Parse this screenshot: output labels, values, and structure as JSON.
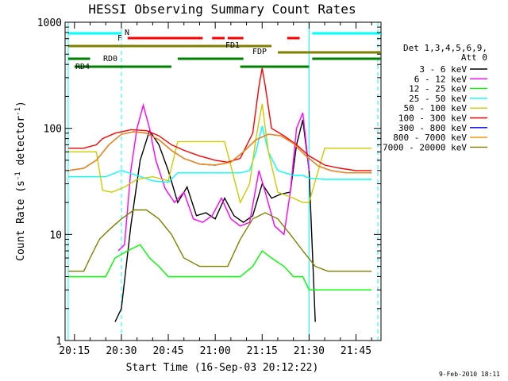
{
  "chart_data": {
    "type": "line",
    "title": "HESSI Observing Summary Count Rates",
    "xlabel": "Start Time (16-Sep-03 20:12:22)",
    "ylabel": "Count Rate (s^-1 detector^-1)",
    "ylabel_parts": {
      "base": "Count Rate (s",
      "exp1": "-1",
      "mid": " detector",
      "exp2": "-1",
      "end": ")"
    },
    "yscale": "log",
    "ylim": [
      1,
      1000
    ],
    "xlim": [
      "20:12",
      "21:53"
    ],
    "x_ticks": [
      "20:15",
      "20:30",
      "20:45",
      "21:00",
      "21:15",
      "21:30",
      "21:45"
    ],
    "y_ticks": [
      "1",
      "10",
      "100",
      "1000"
    ],
    "grid": false,
    "legend_position": "right",
    "legend_header": [
      "Det 1,3,4,5,6,9,",
      "Att 0"
    ],
    "footer_date": "9-Feb-2010 18:11",
    "series": [
      {
        "name": "3 - 6 keV",
        "color": "#000000",
        "x": [
          "20:28",
          "20:30",
          "20:33",
          "20:36",
          "20:39",
          "20:42",
          "20:45",
          "20:48",
          "20:51",
          "20:54",
          "20:57",
          "21:00",
          "21:03",
          "21:06",
          "21:09",
          "21:12",
          "21:15",
          "21:18",
          "21:21",
          "21:24",
          "21:26",
          "21:28",
          "21:30",
          "21:32"
        ],
        "y": [
          1.5,
          2,
          12,
          50,
          95,
          70,
          40,
          20,
          28,
          15,
          16,
          14,
          22,
          15,
          13,
          15,
          30,
          22,
          24,
          25,
          70,
          120,
          40,
          1.5
        ]
      },
      {
        "name": "6 - 12 keV",
        "color": "#ff00ff",
        "x": [
          "20:29",
          "20:31",
          "20:33",
          "20:35",
          "20:37",
          "20:39",
          "20:41",
          "20:44",
          "20:47",
          "20:50",
          "20:53",
          "20:56",
          "20:59",
          "21:02",
          "21:05",
          "21:08",
          "21:11",
          "21:14",
          "21:16",
          "21:19",
          "21:22",
          "21:24",
          "21:26",
          "21:28",
          "21:30"
        ],
        "y": [
          7,
          8,
          40,
          100,
          165,
          100,
          50,
          27,
          20,
          25,
          14,
          13,
          15,
          22,
          14,
          12,
          13,
          40,
          25,
          12,
          10,
          25,
          100,
          140,
          40
        ]
      },
      {
        "name": "12 - 25 keV",
        "color": "#00ff00",
        "x": [
          "20:13",
          "20:20",
          "20:25",
          "20:28",
          "20:32",
          "20:36",
          "20:39",
          "20:42",
          "20:45",
          "20:48",
          "20:55",
          "21:03",
          "21:08",
          "21:12",
          "21:15",
          "21:18",
          "21:22",
          "21:25",
          "21:28",
          "21:30",
          "21:35",
          "21:45",
          "21:50"
        ],
        "y": [
          4,
          4,
          4,
          6,
          7,
          8,
          6,
          5,
          4,
          4,
          4,
          4,
          4,
          5,
          7,
          6,
          5,
          4,
          4,
          3,
          3,
          3,
          3
        ]
      },
      {
        "name": "25 - 50 keV",
        "color": "#00ffff",
        "x": [
          "20:13",
          "20:18",
          "20:22",
          "20:25",
          "20:30",
          "20:35",
          "20:40",
          "20:45",
          "20:48",
          "20:55",
          "21:00",
          "21:05",
          "21:08",
          "21:11",
          "21:13",
          "21:15",
          "21:17",
          "21:20",
          "21:25",
          "21:28",
          "21:30",
          "21:35",
          "21:45",
          "21:50"
        ],
        "y": [
          35,
          35,
          35,
          35,
          40,
          36,
          32,
          31,
          38,
          38,
          38,
          38,
          38,
          40,
          60,
          105,
          60,
          40,
          36,
          36,
          34,
          33,
          33,
          33
        ]
      },
      {
        "name": "50 - 100 keV",
        "color": "#cccc00",
        "x": [
          "20:13",
          "20:18",
          "20:22",
          "20:24",
          "20:27",
          "20:31",
          "20:35",
          "20:40",
          "20:45",
          "20:48",
          "20:55",
          "21:03",
          "21:08",
          "21:11",
          "21:13",
          "21:15",
          "21:17",
          "21:20",
          "21:25",
          "21:28",
          "21:30",
          "21:35",
          "21:45",
          "21:50"
        ],
        "y": [
          60,
          60,
          60,
          26,
          25,
          28,
          33,
          35,
          32,
          75,
          75,
          75,
          20,
          30,
          80,
          170,
          60,
          25,
          22,
          20,
          20,
          65,
          65,
          65
        ]
      },
      {
        "name": "100 - 300 keV",
        "color": "#ff0000",
        "x": [
          "20:13",
          "20:18",
          "20:22",
          "20:24",
          "20:28",
          "20:33",
          "20:38",
          "20:42",
          "20:46",
          "20:50",
          "20:55",
          "21:00",
          "21:04",
          "21:08",
          "21:12",
          "21:14",
          "21:15",
          "21:16",
          "21:18",
          "21:22",
          "21:26",
          "21:30",
          "21:35",
          "21:40",
          "21:45",
          "21:50"
        ],
        "y": [
          65,
          65,
          70,
          80,
          90,
          97,
          95,
          85,
          70,
          62,
          55,
          50,
          48,
          52,
          90,
          250,
          370,
          250,
          100,
          85,
          70,
          55,
          45,
          42,
          40,
          40
        ]
      },
      {
        "name": "300 - 800 keV",
        "color": "#0000ff",
        "x": [
          "20:13",
          "20:18",
          "20:22",
          "20:26",
          "20:30",
          "20:34",
          "20:38",
          "20:42",
          "20:46",
          "20:50",
          "20:55",
          "21:00",
          "21:05",
          "21:09",
          "21:13",
          "21:17",
          "21:21",
          "21:25",
          "21:29",
          "21:33",
          "21:37",
          "21:42",
          "21:47",
          "21:50"
        ],
        "y": [
          40,
          42,
          50,
          70,
          88,
          93,
          90,
          78,
          62,
          52,
          46,
          45,
          48,
          60,
          78,
          88,
          85,
          72,
          55,
          44,
          40,
          38,
          38,
          38
        ]
      },
      {
        "name": "800 - 7000 keV",
        "color": "#ff8c00",
        "x": [
          "20:13",
          "20:18",
          "20:22",
          "20:26",
          "20:30",
          "20:34",
          "20:38",
          "20:42",
          "20:46",
          "20:50",
          "20:55",
          "21:00",
          "21:05",
          "21:09",
          "21:13",
          "21:17",
          "21:21",
          "21:25",
          "21:29",
          "21:33",
          "21:37",
          "21:42",
          "21:47",
          "21:50"
        ],
        "y": [
          40,
          42,
          50,
          70,
          88,
          93,
          90,
          78,
          62,
          52,
          46,
          45,
          48,
          60,
          78,
          88,
          85,
          72,
          55,
          44,
          40,
          38,
          38,
          38
        ]
      },
      {
        "name": "7000 - 20000 keV",
        "color": "#808000",
        "x": [
          "20:13",
          "20:18",
          "20:20",
          "20:23",
          "20:26",
          "20:30",
          "20:34",
          "20:38",
          "20:42",
          "20:46",
          "20:50",
          "20:55",
          "21:00",
          "21:04",
          "21:08",
          "21:12",
          "21:16",
          "21:20",
          "21:24",
          "21:28",
          "21:32",
          "21:36",
          "21:42",
          "21:50"
        ],
        "y": [
          4.5,
          4.5,
          6,
          9,
          11,
          14,
          17,
          17,
          14,
          10,
          6,
          5,
          5,
          5,
          9,
          14,
          16,
          14,
          10,
          7,
          5,
          4.5,
          4.5,
          4.5
        ]
      }
    ],
    "flag_bars": [
      {
        "label": "N",
        "color": "#00ffff",
        "segments": [
          [
            "20:13",
            "20:30"
          ],
          [
            "21:31",
            "21:53"
          ]
        ]
      },
      {
        "label": "F",
        "color": "#ff0000",
        "segments": [
          [
            "20:32",
            "20:56"
          ],
          [
            "20:59",
            "21:03"
          ],
          [
            "21:04",
            "21:09"
          ],
          [
            "21:23",
            "21:27"
          ]
        ]
      },
      {
        "label": "FD1",
        "color": "#808000",
        "segments": [
          [
            "20:13",
            "21:18"
          ]
        ]
      },
      {
        "label": "FDP",
        "color": "#808000",
        "segments": [
          [
            "21:20",
            "21:53"
          ]
        ]
      },
      {
        "label": "RD0",
        "color": "#008000",
        "segments": [
          [
            "20:13",
            "20:20"
          ],
          [
            "20:48",
            "21:09"
          ],
          [
            "21:31",
            "21:53"
          ]
        ]
      },
      {
        "label": "RD4",
        "color": "#008000",
        "segments": [
          [
            "20:15",
            "20:46"
          ],
          [
            "21:08",
            "21:30"
          ]
        ]
      }
    ],
    "vertical_lines": [
      {
        "x": "20:13",
        "color": "#00ffff",
        "style": "solid"
      },
      {
        "x": "20:30",
        "color": "#00ffff",
        "style": "dashed"
      },
      {
        "x": "21:30",
        "color": "#00ffff",
        "style": "solid"
      },
      {
        "x": "21:52",
        "color": "#00ffff",
        "style": "dashed"
      }
    ]
  }
}
